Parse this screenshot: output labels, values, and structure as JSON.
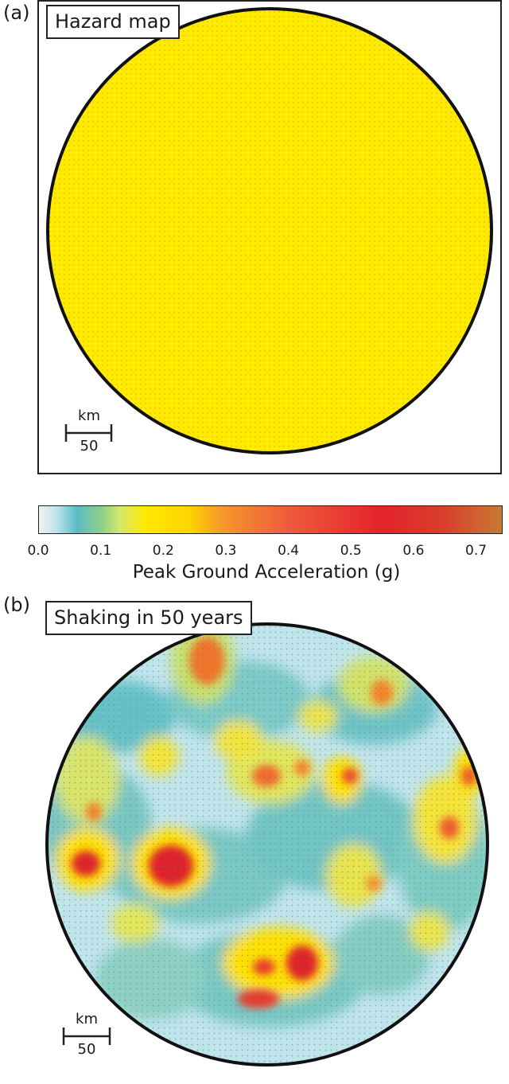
{
  "panel_a": {
    "letter": "(a)",
    "title": "Hazard map",
    "scale_unit": "km",
    "scale_value": "50",
    "fill_color": "#ffea00"
  },
  "panel_b": {
    "letter": "(b)",
    "title": "Shaking in 50 years",
    "scale_unit": "km",
    "scale_value": "50"
  },
  "colorbar": {
    "label": "Peak Ground Acceleration (g)",
    "ticks": [
      "0.0",
      "0.1",
      "0.2",
      "0.3",
      "0.4",
      "0.5",
      "0.6",
      "0.7"
    ],
    "range": [
      0.0,
      0.74
    ],
    "stops": [
      {
        "value": 0.0,
        "color": "#f2f2f2"
      },
      {
        "value": 0.03,
        "color": "#b9e2ea"
      },
      {
        "value": 0.06,
        "color": "#5bbcc4"
      },
      {
        "value": 0.1,
        "color": "#8fcf8a"
      },
      {
        "value": 0.13,
        "color": "#d4e86a"
      },
      {
        "value": 0.17,
        "color": "#ffea00"
      },
      {
        "value": 0.24,
        "color": "#ffd400"
      },
      {
        "value": 0.29,
        "color": "#f69a2a"
      },
      {
        "value": 0.4,
        "color": "#ef5a3c"
      },
      {
        "value": 0.55,
        "color": "#e2232b"
      },
      {
        "value": 0.65,
        "color": "#d9402d"
      },
      {
        "value": 0.74,
        "color": "#c77a32"
      }
    ]
  }
}
